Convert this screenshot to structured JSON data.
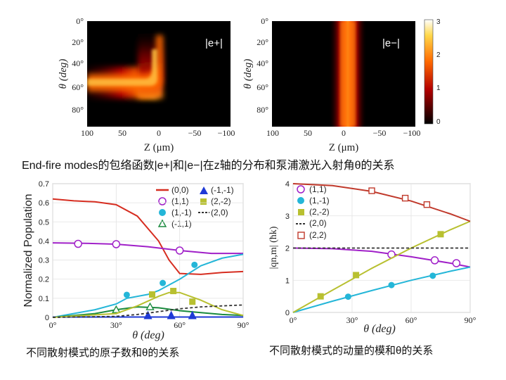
{
  "caption_top": "End-fire modes的包络函数|e+|和|e−|在z轴的分布和泵浦激光入射角θ的关系",
  "caption_left": "不同散射模式的原子数和θ的关系",
  "caption_right": "不同散射模式的动量的模和θ的关系",
  "heatmap_panels": [
    {
      "label": "|e+|",
      "ylabel": "θ (deg)",
      "xlabel": "Z (μm)",
      "yticks": [
        "0°",
        "20°",
        "40°",
        "60°",
        "80°"
      ],
      "xticks": [
        "100",
        "50",
        "0",
        "−50",
        "−100"
      ]
    },
    {
      "label": "|e−|",
      "ylabel": "θ (deg)",
      "xlabel": "Z (μm)",
      "yticks": [
        "0°",
        "20°",
        "40°",
        "60°",
        "80°"
      ],
      "xticks": [
        "100",
        "50",
        "0",
        "−50",
        "−100"
      ]
    }
  ],
  "colorbar": {
    "ticks": [
      "3",
      "2",
      "1",
      "0"
    ]
  },
  "chart_data": [
    {
      "type": "line",
      "title": "",
      "xlabel": "θ (deg)",
      "ylabel": "Normalized Population",
      "xlim": [
        0,
        90
      ],
      "ylim": [
        0,
        0.7
      ],
      "xticks": [
        "0°",
        "30°",
        "60°",
        "90°"
      ],
      "yticks": [
        "0",
        "0.1",
        "0.2",
        "0.3",
        "0.4",
        "0.5",
        "0.6",
        "0.7"
      ],
      "legend": [
        "(0,0)",
        "(1,1)",
        "(1,-1)",
        "(-1,1)",
        "(-1,-1)",
        "(2,-2)",
        "(2,0)"
      ],
      "series": [
        {
          "name": "(0,0)",
          "color": "#d62d20",
          "x": [
            0,
            10,
            20,
            30,
            40,
            50,
            55,
            60,
            70,
            80,
            90
          ],
          "y": [
            0.62,
            0.61,
            0.605,
            0.59,
            0.53,
            0.4,
            0.3,
            0.23,
            0.225,
            0.235,
            0.24
          ]
        },
        {
          "name": "(1,1)",
          "color": "#a020c8",
          "x": [
            0,
            15,
            30,
            45,
            60,
            75,
            90
          ],
          "y": [
            0.39,
            0.388,
            0.383,
            0.37,
            0.35,
            0.335,
            0.335
          ],
          "markers_x": [
            12,
            30,
            60
          ],
          "markers_y": [
            0.385,
            0.383,
            0.35
          ]
        },
        {
          "name": "(1,-1)",
          "color": "#24b6d8",
          "x": [
            0,
            20,
            30,
            35,
            45,
            50,
            60,
            70,
            80,
            90
          ],
          "y": [
            0,
            0.04,
            0.07,
            0.1,
            0.12,
            0.14,
            0.2,
            0.27,
            0.31,
            0.33
          ],
          "markers_x": [
            35,
            52,
            67
          ],
          "markers_y": [
            0.118,
            0.18,
            0.275
          ]
        },
        {
          "name": "(-1,1)",
          "color": "#1a8a3e",
          "x": [
            0,
            20,
            30,
            40,
            50,
            60,
            70,
            80,
            90
          ],
          "y": [
            0,
            0.02,
            0.04,
            0.055,
            0.05,
            0.035,
            0.025,
            0.015,
            0.01
          ],
          "markers_x": [
            30,
            46
          ],
          "markers_y": [
            0.04,
            0.055
          ]
        },
        {
          "name": "(-1,-1)",
          "color": "#1f3ad6",
          "x": [
            0,
            90
          ],
          "y": [
            0.002,
            0.002
          ],
          "markers_x": [
            45,
            56,
            66
          ],
          "markers_y": [
            0.002,
            0.002,
            0.002
          ]
        },
        {
          "name": "(2,-2)",
          "color": "#b8c030",
          "x": [
            0,
            30,
            40,
            50,
            55,
            60,
            70,
            80,
            90
          ],
          "y": [
            0,
            0.02,
            0.06,
            0.11,
            0.13,
            0.13,
            0.09,
            0.04,
            0.01
          ],
          "markers_x": [
            47,
            57,
            66
          ],
          "markers_y": [
            0.12,
            0.138,
            0.082
          ]
        },
        {
          "name": "(2,0)",
          "color": "#333333",
          "dashed": true,
          "x": [
            0,
            30,
            40,
            50,
            60,
            70,
            80,
            90
          ],
          "y": [
            0,
            0.005,
            0.015,
            0.03,
            0.045,
            0.055,
            0.06,
            0.065
          ]
        }
      ]
    },
    {
      "type": "line",
      "title": "",
      "xlabel": "θ (deg)",
      "ylabel": "|qn,m| (ħk)",
      "xlim": [
        0,
        90
      ],
      "ylim": [
        0,
        4
      ],
      "xticks": [
        "0°",
        "30°",
        "60°",
        "90°"
      ],
      "yticks": [
        "0",
        "1",
        "2",
        "3",
        "4"
      ],
      "legend": [
        "(1,1)",
        "(1,-1)",
        "(2,-2)",
        "(2,0)",
        "(2,2)"
      ],
      "series": [
        {
          "name": "(1,1)",
          "color": "#a020c8",
          "x": [
            0,
            20,
            40,
            60,
            80,
            90
          ],
          "y": [
            2.0,
            1.98,
            1.9,
            1.73,
            1.53,
            1.41
          ],
          "markers_x": [
            50,
            72,
            83
          ],
          "markers_y": [
            1.8,
            1.62,
            1.53
          ]
        },
        {
          "name": "(1,-1)",
          "color": "#24b6d8",
          "x": [
            0,
            20,
            40,
            60,
            80,
            90
          ],
          "y": [
            0,
            0.35,
            0.68,
            1.0,
            1.28,
            1.41
          ],
          "markers_x": [
            28,
            50,
            71
          ],
          "markers_y": [
            0.49,
            0.85,
            1.14
          ]
        },
        {
          "name": "(2,-2)",
          "color": "#b8c030",
          "x": [
            0,
            20,
            40,
            60,
            80,
            90
          ],
          "y": [
            0,
            0.69,
            1.37,
            2.0,
            2.57,
            2.83
          ],
          "markers_x": [
            14,
            32,
            75
          ],
          "markers_y": [
            0.5,
            1.16,
            2.43
          ]
        },
        {
          "name": "(2,0)",
          "color": "#333333",
          "dashed": true,
          "x": [
            0,
            90
          ],
          "y": [
            2.0,
            2.0
          ]
        },
        {
          "name": "(2,2)",
          "color": "#c0392b",
          "x": [
            0,
            20,
            40,
            60,
            80,
            90
          ],
          "y": [
            4.0,
            3.94,
            3.76,
            3.46,
            3.06,
            2.83
          ],
          "markers_x": [
            40,
            57,
            68
          ],
          "markers_y": [
            3.78,
            3.55,
            3.35
          ]
        }
      ]
    }
  ]
}
